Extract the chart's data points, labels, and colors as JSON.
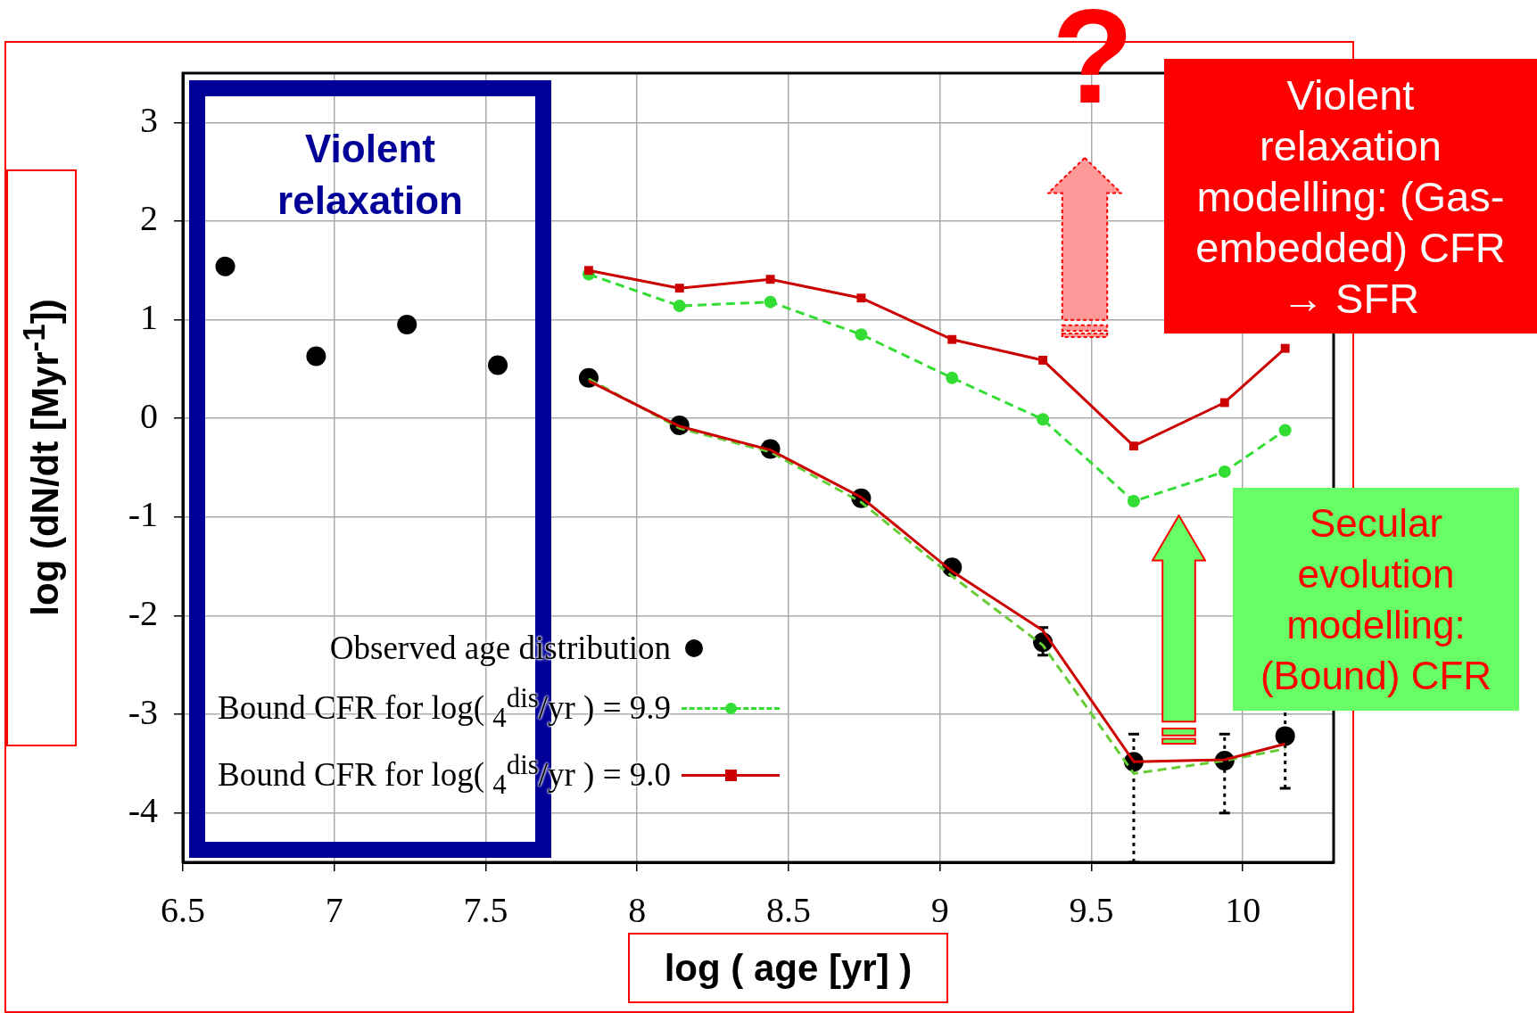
{
  "chart_data": {
    "type": "scatter",
    "xlabel": "log ( age [yr] )",
    "ylabel": "log (dN/dt [Myr$^{-1}$])",
    "xlim": [
      6.5,
      10.3
    ],
    "xticks": [
      6.5,
      7,
      7.5,
      8,
      8.5,
      9,
      9.5,
      10
    ],
    "ylim": [
      -4.5,
      3.5
    ],
    "yticks": [
      -4,
      -3,
      -2,
      -1,
      0,
      1,
      2,
      3
    ],
    "grid": true,
    "legend": "bottom left",
    "annotations": [
      "Violent relaxation",
      "?",
      "Violent relaxation modelling: (Gas-embedded) CFR → SFR",
      "Secular evolution modelling: (Bound) CFR"
    ],
    "series": [
      {
        "type": "scatter",
        "name": "Observed age distribution",
        "color": "#000000",
        "marker": "circle",
        "x": [
          6.64,
          6.94,
          7.24,
          7.54,
          7.84,
          8.14,
          8.44,
          8.74,
          9.04,
          9.34,
          9.64,
          9.94,
          10.14
        ],
        "values": [
          1.54,
          0.63,
          0.95,
          0.54,
          0.41,
          -0.07,
          -0.31,
          -0.81,
          -1.51,
          -2.27,
          -3.48,
          -3.47,
          -3.22
        ],
        "errors": [
          null,
          null,
          null,
          null,
          null,
          null,
          null,
          null,
          null,
          [
            -2.4,
            -2.12
          ],
          [
            -4.5,
            -3.2
          ],
          [
            -4.0,
            -3.2
          ],
          [
            -3.75,
            -2.95
          ]
        ]
      },
      {
        "type": "line",
        "name": "Bound CFR for log( $_{4}$$^{dis}$/yr ) = 9.9",
        "color": "#33dd33",
        "marker": "circle",
        "line_style": "dashed",
        "x": [
          7.84,
          8.14,
          8.44,
          8.74,
          9.04,
          9.34,
          9.64,
          9.94,
          10.14
        ],
        "values": [
          1.46,
          1.14,
          1.18,
          0.85,
          0.41,
          -0.01,
          -0.84,
          -0.54,
          -0.12
        ]
      },
      {
        "type": "line",
        "name": "Bound CFR for log( $_{4}$$^{dis}$/yr ) = 9.0",
        "color": "#cc0000",
        "marker": "square",
        "line_style": "solid",
        "x": [
          7.84,
          8.14,
          8.44,
          8.74,
          9.04,
          9.34,
          9.64,
          9.94,
          10.14
        ],
        "values": [
          1.5,
          1.32,
          1.41,
          1.22,
          0.8,
          0.59,
          -0.28,
          0.16,
          0.71
        ]
      },
      {
        "type": "line",
        "color": "#66cc33",
        "marker": "none",
        "line_style": "dashed",
        "x": [
          7.84,
          8.14,
          8.44,
          8.74,
          9.04,
          9.34,
          9.64,
          9.94,
          10.14
        ],
        "values": [
          0.4,
          -0.1,
          -0.34,
          -0.85,
          -1.6,
          -2.3,
          -3.6,
          -3.47,
          -3.35
        ]
      },
      {
        "type": "line",
        "color": "#cc0000",
        "marker": "none",
        "line_style": "solid",
        "x": [
          7.84,
          8.14,
          8.44,
          8.74,
          9.04,
          9.34,
          9.64,
          9.94,
          10.14
        ],
        "values": [
          0.38,
          -0.08,
          -0.32,
          -0.8,
          -1.55,
          -2.15,
          -3.48,
          -3.46,
          -3.3
        ]
      }
    ]
  }
}
